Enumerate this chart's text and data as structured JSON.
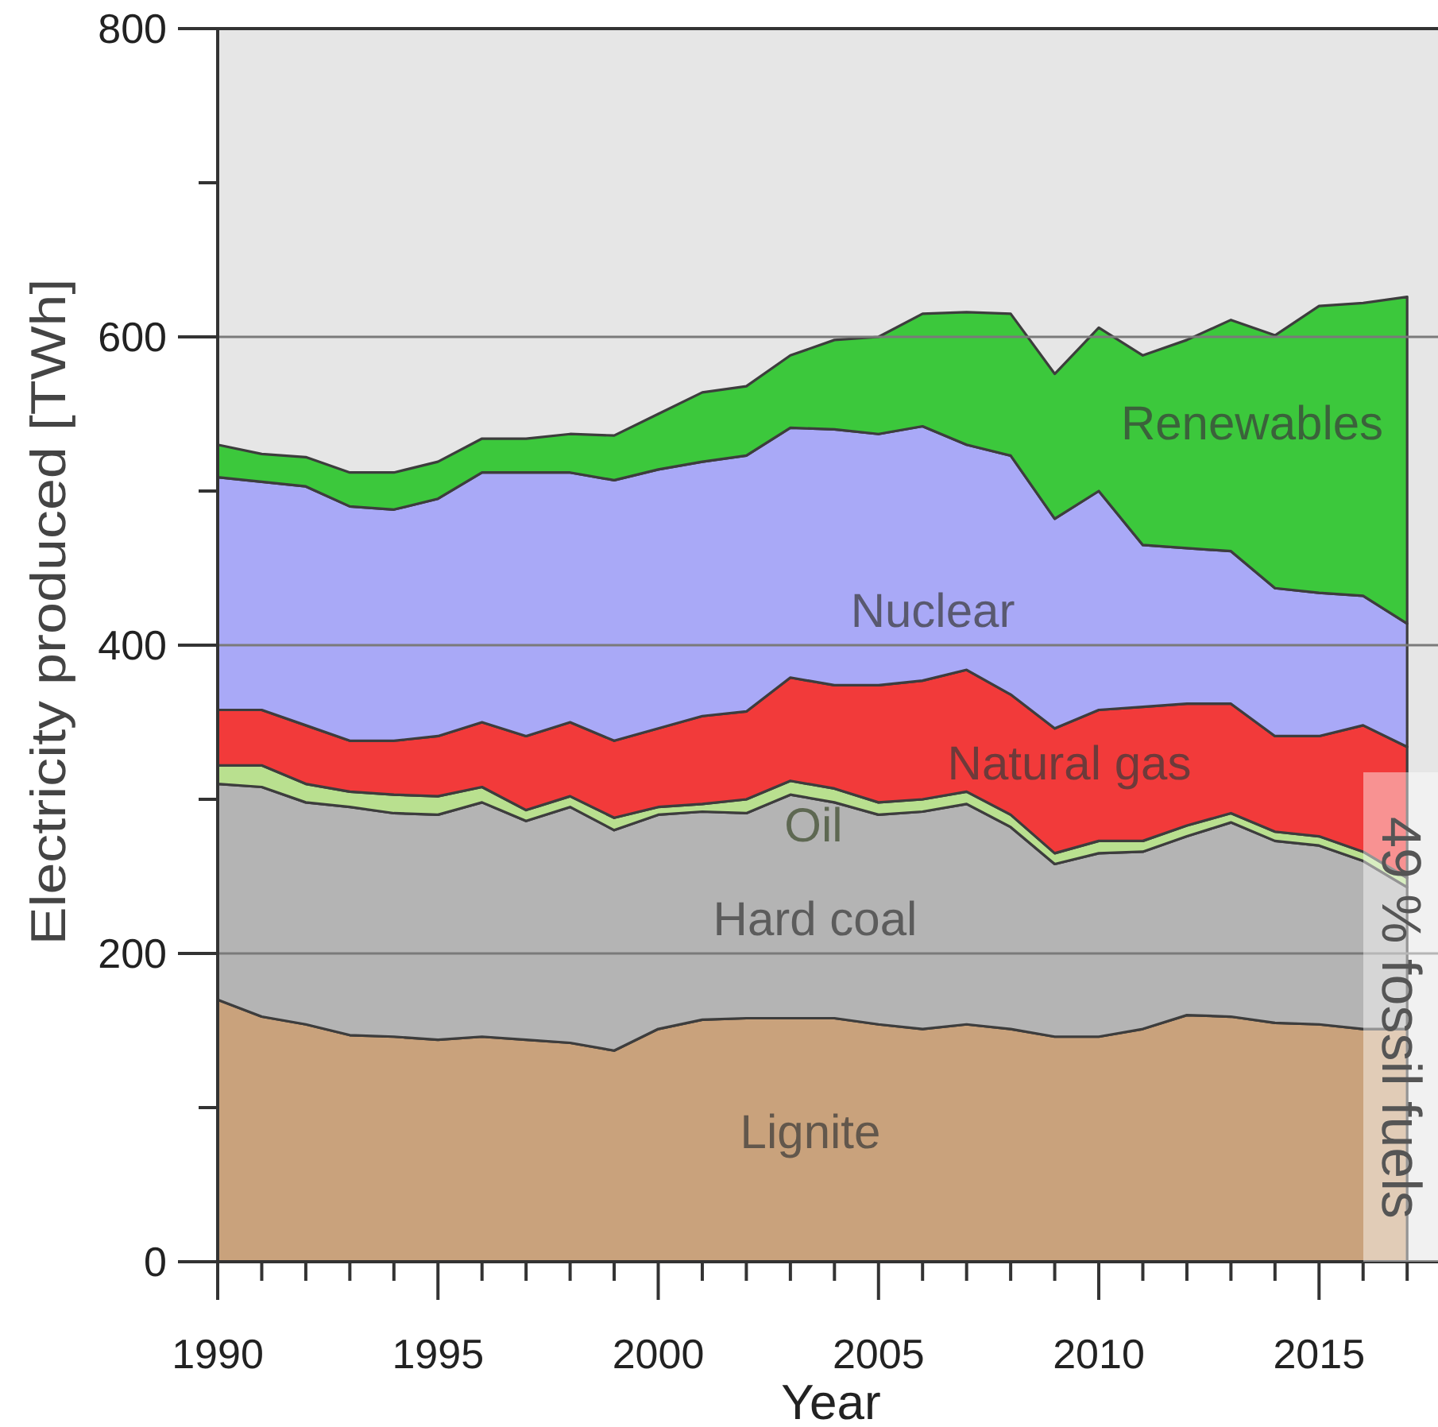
{
  "chart_data": {
    "type": "area",
    "stacked": true,
    "xlabel": "Year",
    "ylabel": "Electricity produced [TWh]",
    "x": [
      1990,
      1991,
      1992,
      1993,
      1994,
      1995,
      1996,
      1997,
      1998,
      1999,
      2000,
      2001,
      2002,
      2003,
      2004,
      2005,
      2006,
      2007,
      2008,
      2009,
      2010,
      2011,
      2012,
      2013,
      2014,
      2015,
      2016,
      2017
    ],
    "xlim": [
      1990,
      2017.7
    ],
    "xticks": [
      1990,
      {
        "value": 1991,
        "label": null
      },
      {
        "value": 1992,
        "label": null
      },
      {
        "value": 1993,
        "label": null
      },
      {
        "value": 1994,
        "label": null
      },
      1995,
      {
        "value": 1996,
        "label": null
      },
      {
        "value": 1997,
        "label": null
      },
      {
        "value": 1998,
        "label": null
      },
      {
        "value": 1999,
        "label": null
      },
      2000,
      {
        "value": 2001,
        "label": null
      },
      {
        "value": 2002,
        "label": null
      },
      {
        "value": 2003,
        "label": null
      },
      {
        "value": 2004,
        "label": null
      },
      2005,
      {
        "value": 2006,
        "label": null
      },
      {
        "value": 2007,
        "label": null
      },
      {
        "value": 2008,
        "label": null
      },
      {
        "value": 2009,
        "label": null
      },
      2010,
      {
        "value": 2011,
        "label": null
      },
      {
        "value": 2012,
        "label": null
      },
      {
        "value": 2013,
        "label": null
      },
      {
        "value": 2014,
        "label": null
      },
      2015,
      {
        "value": 2016,
        "label": null
      },
      {
        "value": 2017,
        "label": null
      }
    ],
    "ylim": [
      0,
      800
    ],
    "yticks": [
      0,
      {
        "value": 100,
        "label": null
      },
      200,
      {
        "value": 300,
        "label": null
      },
      400,
      {
        "value": 500,
        "label": null
      },
      600,
      {
        "value": 700,
        "label": null
      },
      800
    ],
    "grid": "y",
    "series": [
      {
        "name": "Lignite",
        "color": "#c9a27c",
        "values": [
          170,
          159,
          154,
          147,
          146,
          144,
          146,
          144,
          142,
          137,
          151,
          157,
          158,
          158,
          158,
          154,
          151,
          154,
          151,
          146,
          146,
          151,
          160,
          159,
          155,
          154,
          151,
          151
        ]
      },
      {
        "name": "Hard coal",
        "color": "#b4b4b4",
        "values": [
          140,
          149,
          144,
          148,
          145,
          146,
          152,
          142,
          153,
          143,
          139,
          135,
          133,
          145,
          140,
          136,
          141,
          143,
          131,
          112,
          119,
          115,
          116,
          126,
          118,
          116,
          109,
          92
        ]
      },
      {
        "name": "Oil",
        "color": "#b9e08f",
        "values": [
          12,
          14,
          12,
          10,
          12,
          12,
          10,
          7,
          7,
          8,
          5,
          5,
          9,
          9,
          9,
          8,
          8,
          8,
          8,
          7,
          8,
          7,
          7,
          6,
          6,
          6,
          6,
          6
        ]
      },
      {
        "name": "Natural gas",
        "color": "#f23a3a",
        "values": [
          36,
          36,
          38,
          33,
          35,
          39,
          42,
          48,
          48,
          50,
          51,
          57,
          57,
          67,
          67,
          76,
          77,
          79,
          78,
          81,
          85,
          87,
          79,
          71,
          62,
          65,
          82,
          85
        ]
      },
      {
        "name": "Nuclear",
        "color": "#a9a9f7",
        "values": [
          151,
          148,
          155,
          152,
          150,
          154,
          162,
          171,
          162,
          169,
          168,
          165,
          166,
          162,
          166,
          163,
          165,
          146,
          155,
          136,
          142,
          105,
          101,
          99,
          96,
          93,
          84,
          80
        ]
      },
      {
        "name": "Renewables",
        "color": "#3cc83c",
        "values": [
          21,
          18,
          19,
          22,
          24,
          24,
          22,
          22,
          25,
          29,
          36,
          45,
          45,
          47,
          58,
          63,
          73,
          86,
          92,
          94,
          106,
          123,
          135,
          150,
          164,
          186,
          190,
          212
        ]
      }
    ],
    "annotations": [
      "49 % fossil fuels"
    ]
  }
}
